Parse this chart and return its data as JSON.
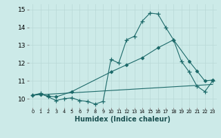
{
  "title": "",
  "xlabel": "Humidex (Indice chaleur)",
  "ylabel": "",
  "background_color": "#cceae8",
  "grid_color": "#b8d8d6",
  "line_color": "#1a6868",
  "xlim": [
    -0.5,
    23.5
  ],
  "ylim": [
    9.5,
    15.3
  ],
  "yticks": [
    10,
    11,
    12,
    13,
    14,
    15
  ],
  "xtick_labels": [
    "0",
    "1",
    "2",
    "3",
    "4",
    "5",
    "6",
    "7",
    "8",
    "9",
    "10",
    "11",
    "12",
    "13",
    "14",
    "15",
    "16",
    "17",
    "18",
    "19",
    "20",
    "21",
    "22",
    "23"
  ],
  "series": [
    {
      "x": [
        0,
        1,
        2,
        3,
        4,
        5,
        6,
        7,
        8,
        9,
        10,
        11,
        12,
        13,
        14,
        15,
        16,
        17,
        18,
        19,
        20,
        21,
        22,
        23
      ],
      "y": [
        10.2,
        10.3,
        10.1,
        9.9,
        10.0,
        10.05,
        9.9,
        9.85,
        9.7,
        9.85,
        12.2,
        12.0,
        13.3,
        13.5,
        14.35,
        14.8,
        14.75,
        14.0,
        13.3,
        12.1,
        11.5,
        10.7,
        10.4,
        11.0
      ],
      "marker": "+"
    },
    {
      "x": [
        0,
        1,
        2,
        3,
        5,
        10,
        12,
        14,
        16,
        18,
        20,
        21,
        22,
        23
      ],
      "y": [
        10.2,
        10.25,
        10.15,
        10.1,
        10.4,
        11.5,
        11.9,
        12.3,
        12.85,
        13.3,
        12.1,
        11.55,
        11.0,
        11.05
      ],
      "marker": "D"
    },
    {
      "x": [
        0,
        23
      ],
      "y": [
        10.2,
        10.8
      ],
      "marker": null
    }
  ]
}
